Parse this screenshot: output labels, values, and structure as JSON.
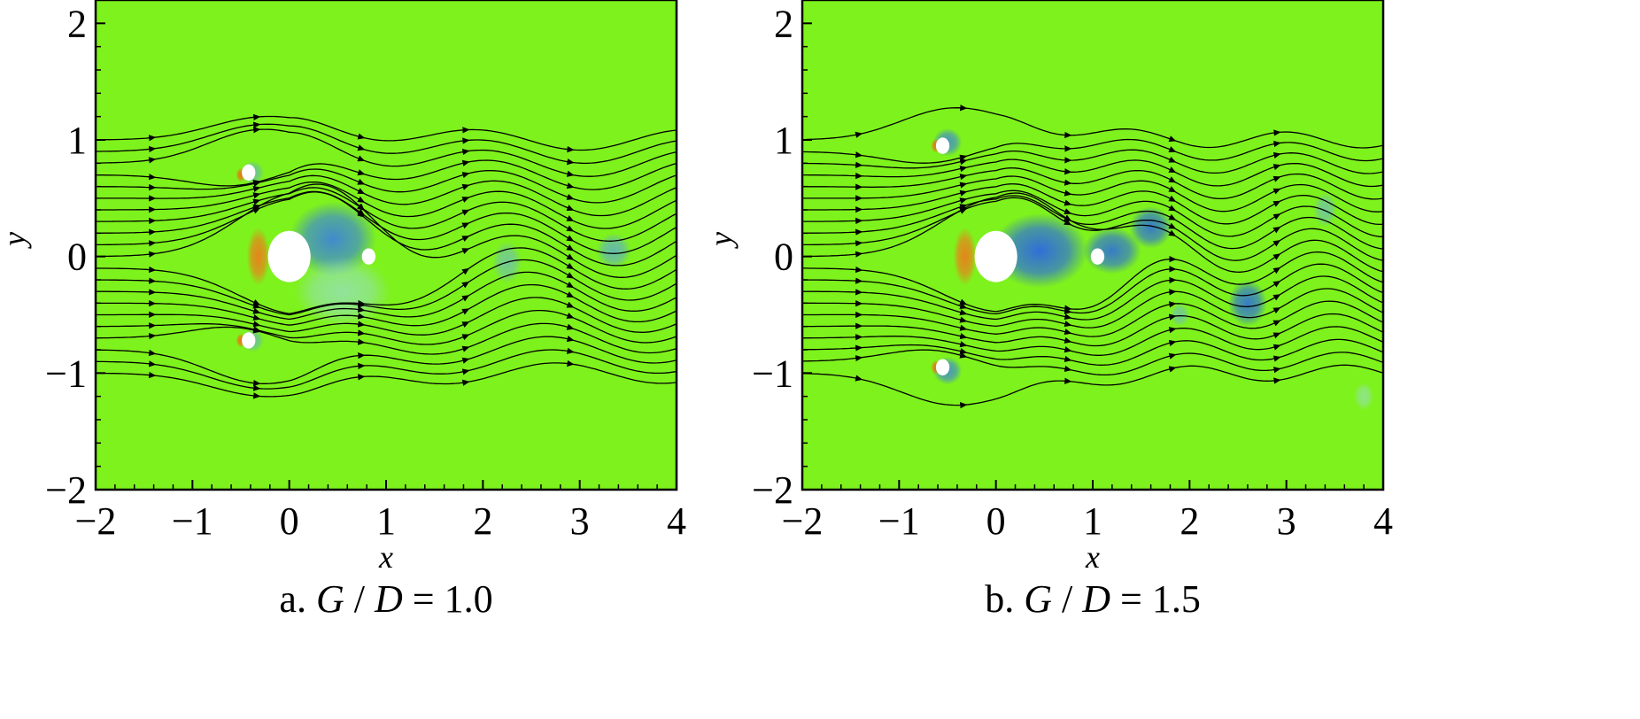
{
  "chart_data": [
    {
      "type": "contour",
      "caption_prefix": "a. ",
      "caption_g": "G",
      "caption_slash": " / ",
      "caption_d": "D",
      "caption_eq": " = ",
      "caption_value": "1.0",
      "xlabel": "x",
      "ylabel": "y",
      "xlim": [
        -2,
        4
      ],
      "ylim": [
        -2,
        2.2
      ],
      "xticks": [
        "−2",
        "−1",
        "0",
        "1",
        "2",
        "3",
        "4"
      ],
      "yticks": [
        "−2",
        "−1",
        "0",
        "1",
        "2"
      ],
      "background_color": "#7ef21c",
      "cylinders": [
        {
          "x": 0.0,
          "y": 0.0,
          "d": 0.44
        },
        {
          "x": -0.42,
          "y": 0.72,
          "d": 0.14
        },
        {
          "x": -0.42,
          "y": -0.72,
          "d": 0.14
        },
        {
          "x": 0.82,
          "y": 0.0,
          "d": 0.14
        }
      ],
      "vortices": [
        {
          "x": 0.45,
          "y": 0.15,
          "rx": 0.45,
          "ry": 0.32,
          "color": "#3a7fe0",
          "strength": 0.9
        },
        {
          "x": 0.55,
          "y": -0.3,
          "rx": 0.5,
          "ry": 0.3,
          "color": "#9fd9f0",
          "strength": 0.6
        },
        {
          "x": -0.38,
          "y": 0.72,
          "rx": 0.12,
          "ry": 0.1,
          "color": "#5aa0e8",
          "strength": 0.6
        },
        {
          "x": -0.38,
          "y": -0.72,
          "rx": 0.12,
          "ry": 0.1,
          "color": "#5aa0e8",
          "strength": 0.6
        },
        {
          "x": 2.25,
          "y": -0.05,
          "rx": 0.15,
          "ry": 0.18,
          "color": "#6aaee6",
          "strength": 0.6
        },
        {
          "x": 3.35,
          "y": 0.05,
          "rx": 0.18,
          "ry": 0.15,
          "color": "#5aa0e8",
          "strength": 0.7
        },
        {
          "x": -0.32,
          "y": 0.0,
          "rx": 0.12,
          "ry": 0.25,
          "color": "#ff6a1a",
          "strength": 0.8
        },
        {
          "x": -0.5,
          "y": 0.7,
          "rx": 0.05,
          "ry": 0.06,
          "color": "#ff5a10",
          "strength": 0.8
        },
        {
          "x": -0.5,
          "y": -0.72,
          "rx": 0.05,
          "ry": 0.06,
          "color": "#ff5a10",
          "strength": 0.8
        }
      ],
      "streamline_y0": [
        -1.0,
        -0.9,
        -0.8,
        -0.7,
        -0.6,
        -0.5,
        -0.4,
        -0.3,
        -0.2,
        -0.1,
        0.0,
        0.1,
        0.2,
        0.3,
        0.4,
        0.5,
        0.6,
        0.7,
        0.8,
        0.9,
        1.0
      ],
      "wake_amplitude": 0.18,
      "wake_wavelength": 2.2
    },
    {
      "type": "contour",
      "caption_prefix": "b. ",
      "caption_g": "G",
      "caption_slash": " / ",
      "caption_d": "D",
      "caption_eq": " = ",
      "caption_value": "1.5",
      "xlabel": "x",
      "ylabel": "y",
      "xlim": [
        -2,
        4
      ],
      "ylim": [
        -2,
        2.2
      ],
      "xticks": [
        "−2",
        "−1",
        "0",
        "1",
        "2",
        "3",
        "4"
      ],
      "yticks": [
        "−2",
        "−1",
        "0",
        "1",
        "2"
      ],
      "background_color": "#7ef21c",
      "cylinders": [
        {
          "x": 0.0,
          "y": 0.0,
          "d": 0.44
        },
        {
          "x": -0.55,
          "y": 0.95,
          "d": 0.14
        },
        {
          "x": -0.55,
          "y": -0.95,
          "d": 0.14
        },
        {
          "x": 1.05,
          "y": 0.0,
          "d": 0.14
        }
      ],
      "vortices": [
        {
          "x": 0.45,
          "y": 0.05,
          "rx": 0.5,
          "ry": 0.32,
          "color": "#2f6fd8",
          "strength": 1.0
        },
        {
          "x": 1.2,
          "y": 0.05,
          "rx": 0.3,
          "ry": 0.2,
          "color": "#2f6fd8",
          "strength": 0.9
        },
        {
          "x": 1.6,
          "y": 0.25,
          "rx": 0.22,
          "ry": 0.18,
          "color": "#2f6fd8",
          "strength": 0.9
        },
        {
          "x": 2.6,
          "y": -0.4,
          "rx": 0.2,
          "ry": 0.2,
          "color": "#2f6fd8",
          "strength": 0.9
        },
        {
          "x": 3.4,
          "y": 0.4,
          "rx": 0.12,
          "ry": 0.15,
          "color": "#6aaee6",
          "strength": 0.6
        },
        {
          "x": 1.9,
          "y": -0.5,
          "rx": 0.1,
          "ry": 0.1,
          "color": "#6aaee6",
          "strength": 0.6
        },
        {
          "x": -0.5,
          "y": 0.98,
          "rx": 0.15,
          "ry": 0.12,
          "color": "#3a7fe0",
          "strength": 0.8
        },
        {
          "x": -0.5,
          "y": -0.98,
          "rx": 0.15,
          "ry": 0.12,
          "color": "#3a7fe0",
          "strength": 0.8
        },
        {
          "x": 3.8,
          "y": -1.2,
          "rx": 0.1,
          "ry": 0.12,
          "color": "#9fd9f0",
          "strength": 0.5
        },
        {
          "x": -0.32,
          "y": 0.0,
          "rx": 0.12,
          "ry": 0.25,
          "color": "#ff6a1a",
          "strength": 0.8
        },
        {
          "x": -0.62,
          "y": 0.95,
          "rx": 0.05,
          "ry": 0.06,
          "color": "#ff5a10",
          "strength": 0.8
        },
        {
          "x": -0.62,
          "y": -0.95,
          "rx": 0.05,
          "ry": 0.06,
          "color": "#ff5a10",
          "strength": 0.8
        }
      ],
      "streamline_y0": [
        -1.0,
        -0.9,
        -0.8,
        -0.7,
        -0.6,
        -0.5,
        -0.4,
        -0.3,
        -0.2,
        -0.1,
        0.0,
        0.1,
        0.2,
        0.3,
        0.4,
        0.5,
        0.6,
        0.7,
        0.8,
        0.9,
        1.0
      ],
      "wake_amplitude": 0.14,
      "wake_wavelength": 1.6
    }
  ]
}
